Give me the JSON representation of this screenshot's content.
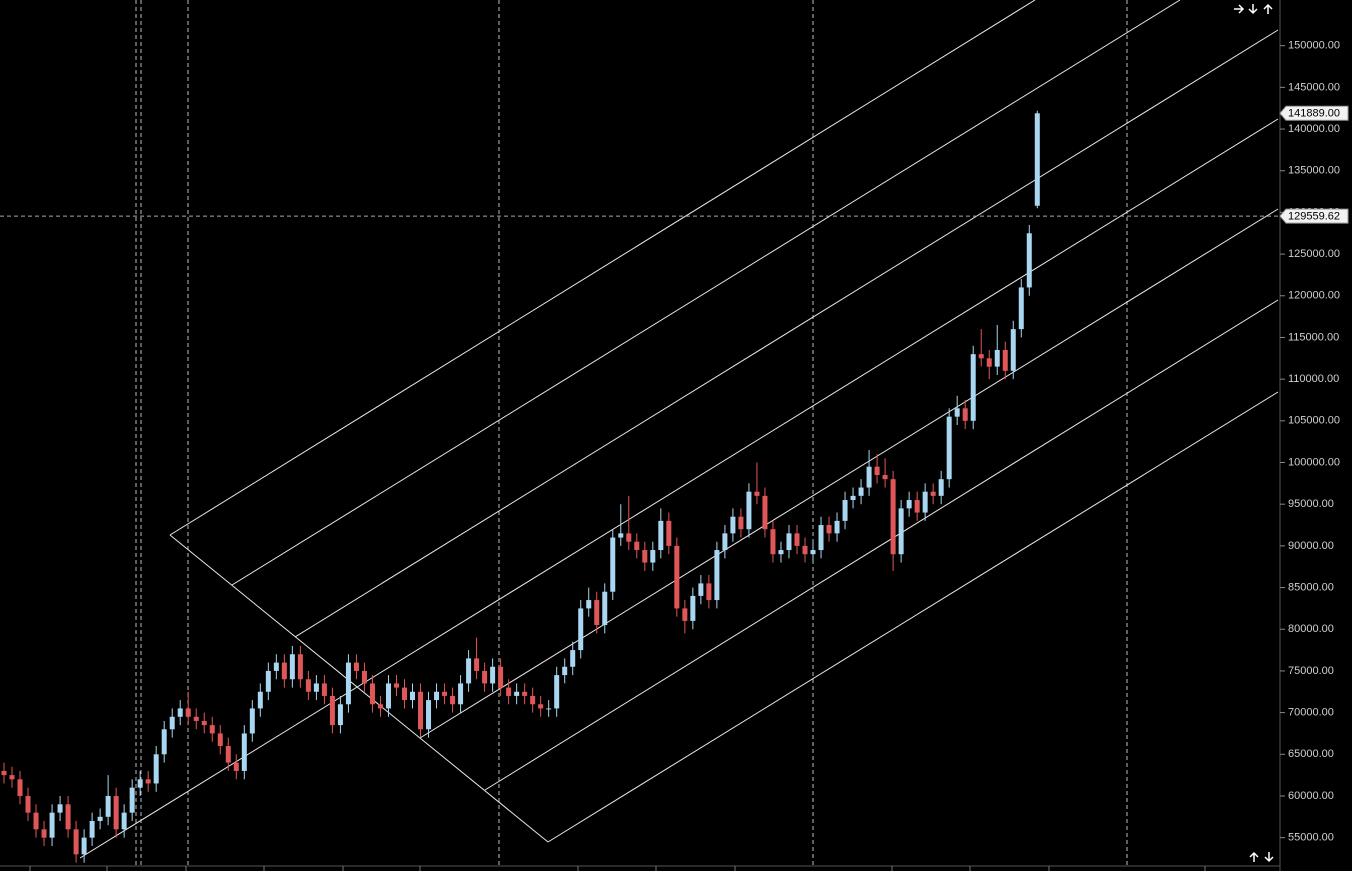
{
  "chart_data": {
    "type": "candlestick",
    "up_color": "#a9d6f0",
    "down_color": "#e0575a",
    "ylim": [
      51000,
      155480
    ],
    "yticks": [
      {
        "value": 55000,
        "label": "55000.00"
      },
      {
        "value": 60000,
        "label": "60000.00"
      },
      {
        "value": 65000,
        "label": "65000.00"
      },
      {
        "value": 70000,
        "label": "70000.00"
      },
      {
        "value": 75000,
        "label": "75000.00"
      },
      {
        "value": 80000,
        "label": "80000.00"
      },
      {
        "value": 85000,
        "label": "85000.00"
      },
      {
        "value": 90000,
        "label": "90000.00"
      },
      {
        "value": 95000,
        "label": "95000.00"
      },
      {
        "value": 100000,
        "label": "100000.00"
      },
      {
        "value": 105000,
        "label": "105000.00"
      },
      {
        "value": 110000,
        "label": "110000.00"
      },
      {
        "value": 115000,
        "label": "115000.00"
      },
      {
        "value": 120000,
        "label": "120000.00"
      },
      {
        "value": 125000,
        "label": "125000.00"
      },
      {
        "value": 130000,
        "label": "130000.00"
      },
      {
        "value": 135000,
        "label": "135000.00"
      },
      {
        "value": 140000,
        "label": "140000.00"
      },
      {
        "value": 145000,
        "label": "145000.00"
      },
      {
        "value": 150000,
        "label": "150000.00"
      }
    ],
    "last_price": {
      "value": 141889,
      "label": "141889.00"
    },
    "crosshair_price": {
      "value": 129559.62,
      "label": "129559.62"
    },
    "open": [
      63000,
      62500,
      62000,
      60000,
      58000,
      56000,
      55000,
      58000,
      59000,
      56000,
      53000,
      55000,
      57000,
      57500,
      60000,
      56000,
      58000,
      61000,
      62000,
      61500,
      65000,
      68000,
      69500,
      70500,
      69500,
      69000,
      68500,
      67500,
      66000,
      64000,
      63000,
      67500,
      70500,
      72500,
      75000,
      76000,
      74000,
      77000,
      74000,
      72500,
      73500,
      72000,
      68500,
      71000,
      76000,
      75000,
      73500,
      71000,
      70500,
      73500,
      73000,
      71500,
      72500,
      68000,
      71500,
      72500,
      72000,
      71000,
      73500,
      76500,
      75000,
      73500,
      75500,
      73000,
      72000,
      72500,
      72000,
      71000,
      70500,
      70500,
      74500,
      75500,
      77500,
      82500,
      83500,
      80500,
      84500,
      91000,
      91500,
      90500,
      89500,
      88000,
      89500,
      93000,
      90000,
      82500,
      81000,
      84000,
      85500,
      83500,
      89500,
      91500,
      93500,
      92000,
      96500,
      96000,
      92000,
      89000,
      89500,
      91500,
      90000,
      89000,
      89500,
      92500,
      91500,
      93000,
      95500,
      96000,
      97000,
      99500,
      98500,
      98000,
      89000,
      94500,
      95500,
      94000,
      96500,
      96000,
      98000,
      105500,
      106500,
      105000,
      113000,
      112500,
      111500,
      113500,
      111000,
      116000,
      121000,
      130800
    ],
    "high": [
      64000,
      63500,
      63000,
      61000,
      59000,
      57000,
      59000,
      60000,
      60000,
      57000,
      56000,
      58000,
      58500,
      62500,
      61000,
      59000,
      62000,
      63000,
      63000,
      66000,
      69000,
      70500,
      71500,
      72500,
      70500,
      70000,
      69500,
      68500,
      67000,
      65000,
      68500,
      71500,
      73500,
      76000,
      77000,
      77000,
      78000,
      78000,
      75000,
      74500,
      74500,
      73000,
      72000,
      77000,
      77000,
      76000,
      74500,
      72000,
      74500,
      74500,
      74000,
      73500,
      73500,
      72500,
      73500,
      73500,
      73000,
      74500,
      77500,
      79000,
      76000,
      76500,
      76500,
      74000,
      73500,
      73500,
      73000,
      72000,
      71500,
      75500,
      76500,
      78500,
      83500,
      85000,
      84500,
      85500,
      92000,
      95000,
      96000,
      91500,
      90500,
      90500,
      94500,
      94000,
      91000,
      83500,
      85000,
      86500,
      86500,
      90500,
      92500,
      94500,
      94500,
      97500,
      100000,
      97000,
      93000,
      90500,
      92500,
      92500,
      91000,
      90500,
      93500,
      93500,
      94000,
      96500,
      97000,
      98000,
      101500,
      101000,
      100500,
      99000,
      95500,
      96500,
      96500,
      97500,
      97500,
      99000,
      106500,
      108000,
      107500,
      114000,
      116000,
      113500,
      116500,
      114500,
      117000,
      122000,
      128500,
      142200
    ],
    "low": [
      61500,
      61000,
      59000,
      57000,
      55000,
      54000,
      54000,
      57000,
      55000,
      52000,
      52000,
      54000,
      56000,
      56500,
      55000,
      55000,
      57000,
      60000,
      60500,
      60500,
      64000,
      67000,
      68500,
      68500,
      68000,
      67500,
      66500,
      65000,
      63000,
      62000,
      62000,
      66500,
      69500,
      71500,
      74000,
      73000,
      73000,
      73000,
      71500,
      71500,
      71000,
      67500,
      67500,
      70000,
      74000,
      72500,
      70000,
      69500,
      69500,
      72000,
      70500,
      70500,
      67000,
      67000,
      70500,
      71000,
      70000,
      70000,
      72500,
      74000,
      72500,
      72500,
      72000,
      71000,
      71000,
      71000,
      70000,
      69500,
      69500,
      69500,
      73500,
      74500,
      76500,
      81500,
      79500,
      79500,
      83500,
      90000,
      89500,
      88500,
      87000,
      87000,
      88500,
      89000,
      81500,
      79500,
      80000,
      83000,
      82500,
      82500,
      88500,
      90500,
      91000,
      91000,
      95000,
      91000,
      88000,
      88000,
      88500,
      89000,
      88000,
      88000,
      88500,
      90500,
      90500,
      92000,
      94500,
      95000,
      96000,
      97500,
      97000,
      87000,
      88000,
      93500,
      93000,
      93000,
      95000,
      95000,
      97000,
      104500,
      104000,
      104000,
      111500,
      110000,
      110500,
      110000,
      110000,
      115000,
      120000,
      130500
    ],
    "close": [
      62500,
      62000,
      60000,
      58000,
      56000,
      55000,
      58000,
      59000,
      56000,
      53000,
      55000,
      57000,
      57500,
      60000,
      56000,
      58000,
      61000,
      62000,
      61500,
      65000,
      68000,
      69500,
      70500,
      69500,
      69000,
      68500,
      67500,
      66000,
      64000,
      63000,
      67500,
      70500,
      72500,
      75000,
      76000,
      74000,
      77000,
      74000,
      72500,
      73500,
      72000,
      68500,
      71000,
      76000,
      75000,
      73500,
      71000,
      70500,
      73500,
      73000,
      71500,
      72500,
      68000,
      71500,
      72500,
      72000,
      71000,
      73500,
      76500,
      75000,
      73500,
      75500,
      73000,
      72000,
      72500,
      72000,
      71000,
      70500,
      70500,
      74500,
      75500,
      77500,
      82500,
      83500,
      80500,
      84500,
      91000,
      91500,
      90500,
      89500,
      88000,
      89500,
      93000,
      90000,
      82500,
      81000,
      84000,
      85500,
      83500,
      89500,
      91500,
      93500,
      92000,
      96500,
      96000,
      92000,
      89000,
      89500,
      91500,
      90000,
      89000,
      89500,
      92500,
      91500,
      93000,
      95500,
      96000,
      97000,
      99500,
      98500,
      98000,
      89000,
      94500,
      95500,
      94000,
      96500,
      96000,
      98000,
      105500,
      106500,
      105000,
      113000,
      112500,
      111500,
      113500,
      111000,
      116000,
      121000,
      127500,
      141889
    ]
  }
}
